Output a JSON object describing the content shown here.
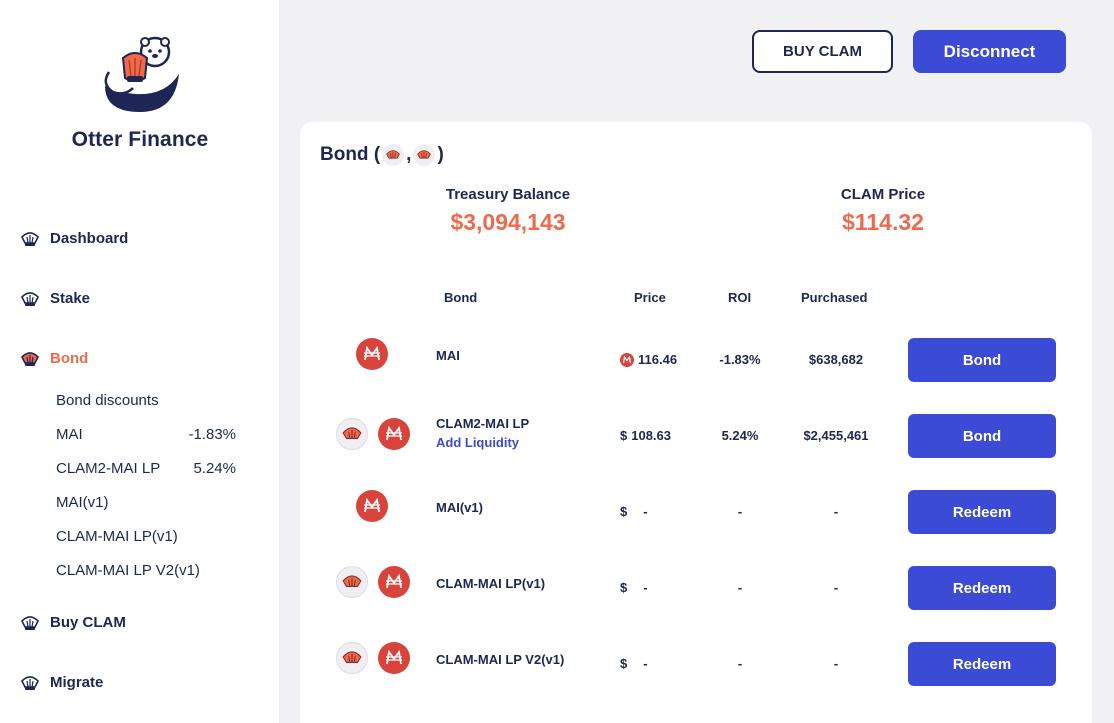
{
  "brand": {
    "name": "Otter Finance",
    "logo_icon": "otter-holding-clam"
  },
  "nav": {
    "items": [
      {
        "label": "Dashboard",
        "icon": "clam-shell-icon"
      },
      {
        "label": "Stake",
        "icon": "clam-shell-icon"
      },
      {
        "label": "Bond",
        "icon": "clam-shell-icon",
        "active": true
      },
      {
        "label": "Buy CLAM",
        "icon": "clam-shell-icon"
      },
      {
        "label": "Migrate",
        "icon": "clam-shell-icon"
      }
    ],
    "bond_discounts": {
      "title": "Bond discounts",
      "items": [
        {
          "label": "MAI",
          "value": "-1.83%"
        },
        {
          "label": "CLAM2-MAI LP",
          "value": "5.24%"
        },
        {
          "label": "MAI(v1)",
          "value": ""
        },
        {
          "label": "CLAM-MAI LP(v1)",
          "value": ""
        },
        {
          "label": "CLAM-MAI LP V2(v1)",
          "value": ""
        }
      ]
    }
  },
  "header": {
    "buy_label": "BUY CLAM",
    "disconnect_label": "Disconnect"
  },
  "card": {
    "title_prefix": "Bond (",
    "title_sep": ",",
    "title_suffix": ")",
    "treasury": {
      "label": "Treasury Balance",
      "value": "$3,094,143"
    },
    "clam_price": {
      "label": "CLAM Price",
      "value": "$114.32"
    },
    "columns": {
      "bond": "Bond",
      "price": "Price",
      "roi": "ROI",
      "purchased": "Purchased"
    },
    "rows": [
      {
        "name": "MAI",
        "sub": "",
        "currency": "mai-token-icon",
        "price": "116.46",
        "roi": "-1.83%",
        "purchased": "$638,682",
        "action": "Bond"
      },
      {
        "name": "CLAM2-MAI LP",
        "sub": "Add Liquidity",
        "currency": "$",
        "price": "108.63",
        "roi": "5.24%",
        "purchased": "$2,455,461",
        "action": "Bond"
      },
      {
        "name": "MAI(v1)",
        "sub": "",
        "currency": "$",
        "price": "-",
        "roi": "-",
        "purchased": "-",
        "action": "Redeem"
      },
      {
        "name": "CLAM-MAI LP(v1)",
        "sub": "",
        "currency": "$",
        "price": "-",
        "roi": "-",
        "purchased": "-",
        "action": "Redeem"
      },
      {
        "name": "CLAM-MAI LP V2(v1)",
        "sub": "",
        "currency": "$",
        "price": "-",
        "roi": "-",
        "purchased": "-",
        "action": "Redeem"
      }
    ]
  },
  "colors": {
    "primary": "#3b4bd6",
    "accent": "#ee6a4d",
    "text": "#1d2654",
    "mai_red": "#d8443c",
    "background": "#f1f1f4"
  }
}
